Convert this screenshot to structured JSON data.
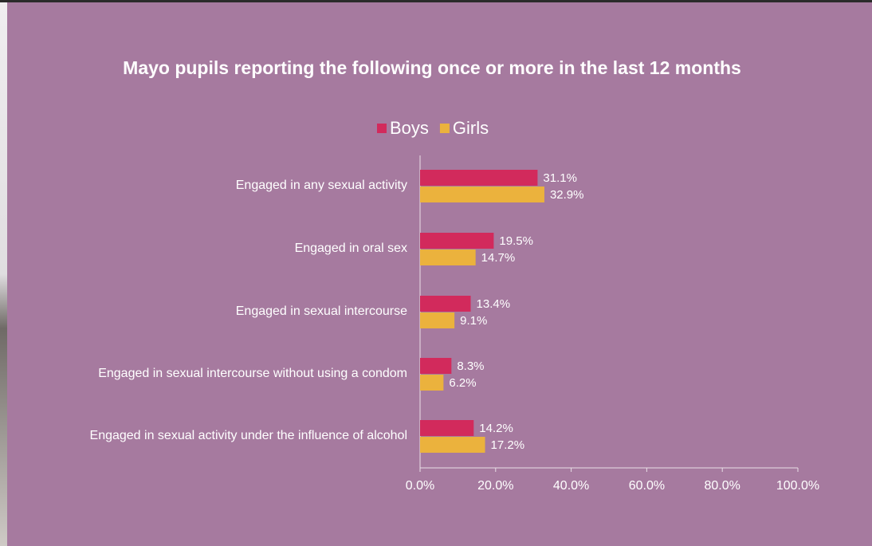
{
  "chart_data": {
    "type": "bar",
    "orientation": "horizontal",
    "title": "Mayo pupils reporting the following once or more in the last 12 months",
    "categories": [
      "Engaged in any sexual activity",
      "Engaged in oral sex",
      "Engaged in sexual intercourse",
      "Engaged in sexual intercourse without using a condom",
      "Engaged in sexual activity under the influence of alcohol"
    ],
    "series": [
      {
        "name": "Boys",
        "color": "#d22a5c",
        "values": [
          31.1,
          19.5,
          13.4,
          8.3,
          14.2
        ],
        "value_labels": [
          "31.1%",
          "19.5%",
          "13.4%",
          "8.3%",
          "14.2%"
        ]
      },
      {
        "name": "Girls",
        "color": "#ebb23d",
        "values": [
          32.9,
          14.7,
          9.1,
          6.2,
          17.2
        ],
        "value_labels": [
          "32.9%",
          "14.7%",
          "9.1%",
          "6.2%",
          "17.2%"
        ]
      }
    ],
    "xlim": [
      0,
      100
    ],
    "xticks": [
      {
        "value": 0,
        "label": "0.0%"
      },
      {
        "value": 20,
        "label": "20.0%"
      },
      {
        "value": 40,
        "label": "40.0%"
      },
      {
        "value": 60,
        "label": "60.0%"
      },
      {
        "value": 80,
        "label": "80.0%"
      },
      {
        "value": 100,
        "label": "100.0%"
      }
    ],
    "legend": "top"
  }
}
